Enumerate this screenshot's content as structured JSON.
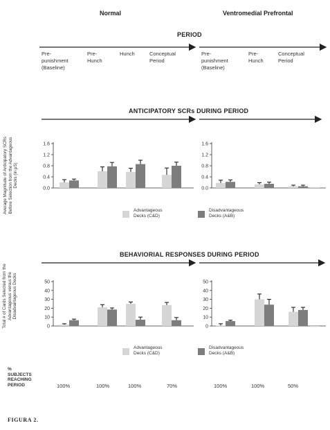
{
  "groups": {
    "normal": "Normal",
    "vmpfc": "Ventromedial Prefrontal"
  },
  "headers": {
    "period": "PERIOD",
    "scr": "ANTICIPATORY SCRs DURING PERIOD",
    "behavior": "BEHAVIORIAL RESPONSES DURING PERIOD"
  },
  "phases_normal": [
    "Pre-\npunishment\n(Baseline)",
    "Pre-\nHunch",
    "Hunch",
    "Conceptual\nPeriod"
  ],
  "phases_vmpfc": [
    "Pre-\npunishment\n(Baseline)",
    "Pre-\nHunch",
    "Conceptual\nPeriod"
  ],
  "legend": {
    "advantageous": "Advantageous\nDecks (C&D)",
    "disadvantageous": "Disadvantageous\nDecks (A&B)"
  },
  "colors": {
    "advantageous": "#d6d6d6",
    "disadvantageous": "#7d7d7d",
    "axis": "#333333"
  },
  "subjects_label": "%\nSUBJECTS\nREACHING\nPERIOD",
  "subjects_normal": [
    "100%",
    "100%",
    "100%",
    "70%"
  ],
  "subjects_vmpfc": [
    "100%",
    "100%",
    "50%"
  ],
  "figure_label": "FIGURA 2.",
  "chart_data": [
    {
      "type": "bar",
      "panel": "SCR - Normal",
      "ylabel": "Average Magnitude of Anticipatory SCRs\nBefore Selection from the Advantageous\nDecks (in µS)",
      "ylim": [
        0,
        1.6
      ],
      "yticks": [
        "0.0",
        "0.4",
        "0.8",
        "1.2",
        "1.6"
      ],
      "categories": [
        "Pre-punishment (Baseline)",
        "Pre-Hunch",
        "Hunch",
        "Conceptual Period"
      ],
      "series": [
        {
          "name": "Advantageous Decks (C&D)",
          "values": [
            0.2,
            0.6,
            0.58,
            0.47
          ],
          "errors": [
            0.1,
            0.16,
            0.13,
            0.25
          ]
        },
        {
          "name": "Disadvantageous Decks (A&B)",
          "values": [
            0.27,
            0.78,
            0.86,
            0.8
          ],
          "errors": [
            0.05,
            0.14,
            0.14,
            0.13
          ]
        }
      ]
    },
    {
      "type": "bar",
      "panel": "SCR - Ventromedial Prefrontal",
      "ylim": [
        0,
        1.6
      ],
      "yticks": [
        "0.0",
        "0.4",
        "0.8",
        "1.2",
        "1.6"
      ],
      "categories": [
        "Pre-punishment (Baseline)",
        "Pre-Hunch",
        "Conceptual Period",
        ""
      ],
      "series": [
        {
          "name": "Advantageous Decks (C&D)",
          "values": [
            0.18,
            0.13,
            0.06,
            0.03
          ],
          "errors": [
            0.1,
            0.06,
            0.04,
            0
          ]
        },
        {
          "name": "Disadvantageous Decks (A&B)",
          "values": [
            0.22,
            0.15,
            0.06,
            0
          ],
          "errors": [
            0.07,
            0.06,
            0.04,
            0
          ]
        }
      ]
    },
    {
      "type": "bar",
      "panel": "Behavior - Normal",
      "ylabel": "Total # of Cards Selected from the\nAdvantageous versus the\nDisadvantageous Decks",
      "ylim": [
        0,
        50
      ],
      "yticks": [
        "0",
        "10",
        "20",
        "30",
        "40",
        "50"
      ],
      "categories": [
        "Pre-punishment (Baseline)",
        "Pre-Hunch",
        "Hunch",
        "Conceptual Period"
      ],
      "series": [
        {
          "name": "Advantageous Decks (C&D)",
          "values": [
            1.5,
            21,
            25,
            23.5
          ],
          "errors": [
            1,
            3,
            2,
            3
          ]
        },
        {
          "name": "Disadvantageous Decks (A&B)",
          "values": [
            6.5,
            18.5,
            7,
            6.5
          ],
          "errors": [
            1.2,
            1.8,
            3,
            3
          ]
        }
      ]
    },
    {
      "type": "bar",
      "panel": "Behavior - Ventromedial Prefrontal",
      "ylim": [
        0,
        50
      ],
      "yticks": [
        "0",
        "10",
        "20",
        "30",
        "40",
        "50"
      ],
      "categories": [
        "Pre-punishment (Baseline)",
        "Pre-Hunch",
        "Conceptual Period",
        ""
      ],
      "series": [
        {
          "name": "Advantageous Decks (C&D)",
          "values": [
            0.5,
            30,
            16,
            -1
          ],
          "errors": [
            2,
            6,
            5,
            0
          ]
        },
        {
          "name": "Disadvantageous Decks (A&B)",
          "values": [
            5.5,
            24,
            18,
            0
          ],
          "errors": [
            1,
            6,
            3,
            0
          ]
        }
      ]
    }
  ]
}
